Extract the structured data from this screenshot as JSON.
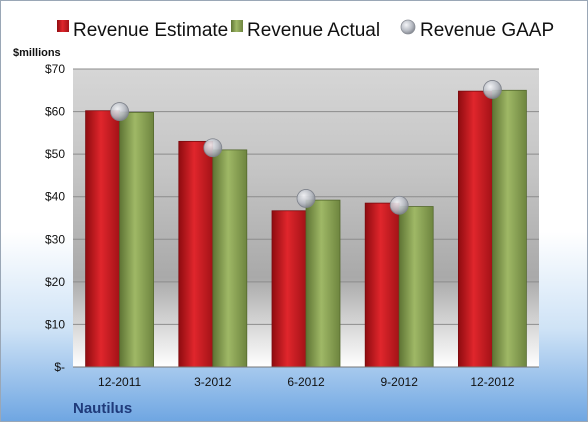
{
  "chart_data": {
    "type": "bar",
    "unit_label": "$millions",
    "company": "Nautilus",
    "categories": [
      "12-2011",
      "3-2012",
      "6-2012",
      "9-2012",
      "12-2012"
    ],
    "series": [
      {
        "name": "Revenue Estimate",
        "kind": "bar",
        "color": "#c8161d",
        "values": [
          60.2,
          53.0,
          36.7,
          38.5,
          64.8
        ]
      },
      {
        "name": "Revenue Actual",
        "kind": "bar",
        "color": "#8aa052",
        "values": [
          59.8,
          51.0,
          39.2,
          37.7,
          65.0
        ]
      },
      {
        "name": "Revenue GAAP",
        "kind": "marker",
        "color": "#b8bcc4",
        "values": [
          60.0,
          51.5,
          39.6,
          38.0,
          65.2
        ]
      }
    ],
    "ylim": [
      0,
      70
    ],
    "y_ticks": [
      {
        "value": 0,
        "label": "$-"
      },
      {
        "value": 10,
        "label": "$10"
      },
      {
        "value": 20,
        "label": "$20"
      },
      {
        "value": 30,
        "label": "$30"
      },
      {
        "value": 40,
        "label": "$40"
      },
      {
        "value": 50,
        "label": "$50"
      },
      {
        "value": 60,
        "label": "$60"
      },
      {
        "value": 70,
        "label": "$70"
      }
    ],
    "grid": true,
    "legend_position": "top"
  }
}
